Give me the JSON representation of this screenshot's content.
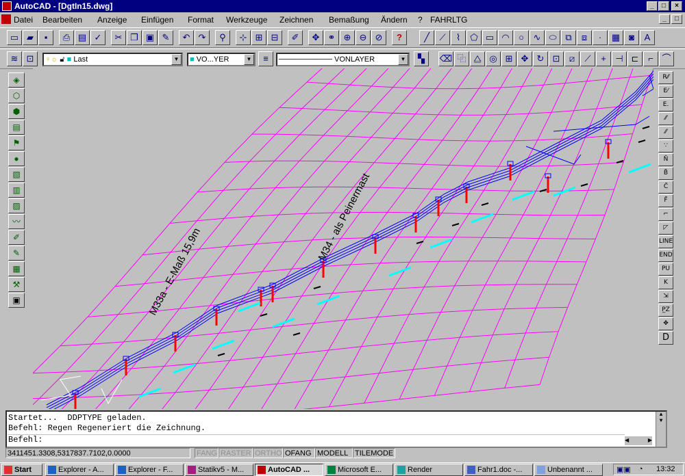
{
  "window": {
    "title": "AutoCAD - [DgtIn15.dwg]",
    "controls": [
      "_",
      "□",
      "×"
    ]
  },
  "menu": [
    "Datei",
    "Bearbeiten",
    "Anzeige",
    "Einfügen",
    "Format",
    "Werkzeuge",
    "Zeichnen",
    "Bemaßung",
    "Ändern",
    "?",
    "FAHRLTG"
  ],
  "properties": {
    "layer": "Last",
    "color": "VO...YER",
    "linetype": "VONLAYER"
  },
  "drawing": {
    "labels": [
      "M33a - E-Maß 15,9m",
      "M34 - als Peinermast"
    ],
    "grid_color": "#ff00ff",
    "line_color": "#0000ff",
    "mast_color": "#ff0000",
    "marker_color": "#00ffff"
  },
  "command": {
    "lines": [
      "Startet...  DDPTYPE geladen.",
      "Befehl: Regen Regeneriert die Zeichnung.",
      "Befehl:"
    ]
  },
  "status": {
    "coords": "3411451.3308,5317837.7102,0.0000",
    "toggles": [
      {
        "label": "FANG",
        "active": false
      },
      {
        "label": "RASTER",
        "active": false
      },
      {
        "label": "ORTHO",
        "active": false
      },
      {
        "label": "OFANG",
        "active": true
      },
      {
        "label": "MODELL",
        "active": true
      },
      {
        "label": "TILEMODE",
        "active": true
      }
    ]
  },
  "taskbar": {
    "start": "Start",
    "tasks": [
      "Explorer - A...",
      "Explorer - F...",
      "Statikv5 - M...",
      "AutoCAD ...",
      "Microsoft E...",
      "Render",
      "Fahr1.doc -...",
      "Unbenannt ..."
    ],
    "clock": "13:32"
  }
}
